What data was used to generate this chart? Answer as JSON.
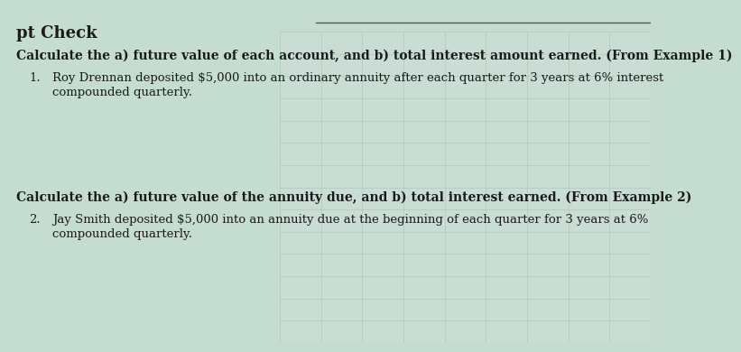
{
  "title": "pt Check",
  "bg_color": "#c5ddd1",
  "table_bg": "#c8ddd3",
  "text_color": "#1a1a1a",
  "header1": "Calculate the a) future value of each account, and b) total interest amount earned. (From Example 1)",
  "item1_line1": "Roy Drennan deposited $5,000 into an ordinary annuity after each quarter for 3 years at 6% interest",
  "item1_line2": "compounded quarterly.",
  "header2": "Calculate the a) future value of the annuity due, and b) total interest earned. (From Example 2)",
  "item2_line1": "Jay Smith deposited $5,000 into an annuity due at the beginning of each quarter for 3 years at 6%",
  "item2_line2": "compounded quarterly.",
  "divider_color": "#555555",
  "grid_color": "#a0b8aa",
  "title_fontsize": 13,
  "header_fontsize": 10,
  "item_fontsize": 9.5
}
